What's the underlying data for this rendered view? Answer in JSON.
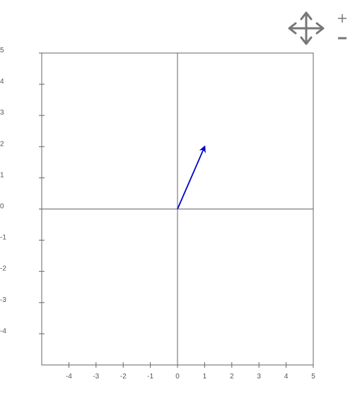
{
  "axes": {
    "x_ticks": [
      "-4",
      "-3",
      "-2",
      "-1",
      "0",
      "1",
      "2",
      "3",
      "4",
      "5"
    ],
    "y_ticks": [
      "5",
      "4",
      "3",
      "2",
      "1",
      "0",
      "-1",
      "-2",
      "-3",
      "-4"
    ]
  },
  "controls": {
    "pan_icon": "four-way-arrow-icon",
    "zoom_in_icon": "plus-icon",
    "zoom_out_icon": "minus-icon"
  },
  "colors": {
    "vector": "#0000cc",
    "axis": "#666666",
    "controls": "#777777"
  },
  "chart_data": {
    "type": "vector",
    "xlim": [
      -5,
      5
    ],
    "ylim": [
      -5,
      5
    ],
    "grid": false,
    "vectors": [
      {
        "from": [
          0,
          0
        ],
        "to": [
          1,
          2
        ]
      }
    ]
  }
}
